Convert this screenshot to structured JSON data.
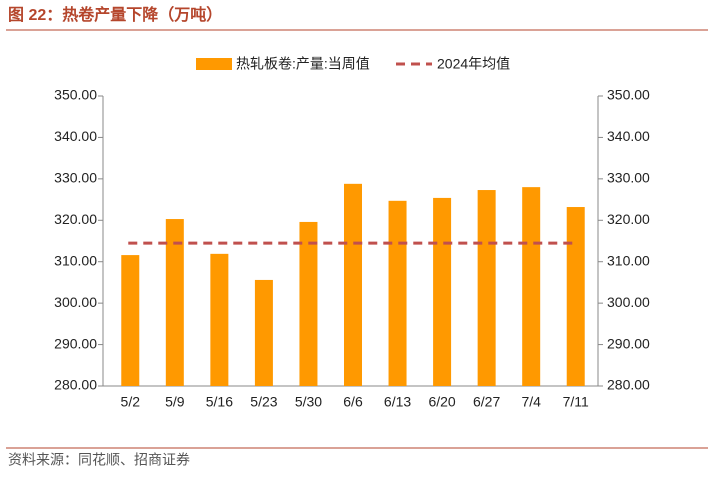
{
  "chart_data": {
    "type": "bar",
    "title": "图 22：热卷产量下降（万吨）",
    "source": "资料来源：同花顺、招商证券",
    "categories": [
      "5/2",
      "5/9",
      "5/16",
      "5/23",
      "5/30",
      "6/6",
      "6/13",
      "6/20",
      "6/27",
      "7/4",
      "7/11"
    ],
    "series": [
      {
        "name": "热轧板卷:产量:当周值",
        "color": "#ff9900",
        "values": [
          311.6,
          320.3,
          311.9,
          305.6,
          319.6,
          328.8,
          324.7,
          325.4,
          327.3,
          328.0,
          323.2
        ]
      },
      {
        "name": "2024年均值",
        "color": "#c0504d",
        "value": 314.5
      }
    ],
    "ylim": [
      280,
      350
    ],
    "yticks": [
      {
        "value": 280,
        "label": "280.00"
      },
      {
        "value": 290,
        "label": "290.00"
      },
      {
        "value": 300,
        "label": "300.00"
      },
      {
        "value": 310,
        "label": "310.00"
      },
      {
        "value": 320,
        "label": "320.00"
      },
      {
        "value": 330,
        "label": "330.00"
      },
      {
        "value": 340,
        "label": "340.00"
      },
      {
        "value": 350,
        "label": "350.00"
      }
    ],
    "y2lim": [
      280,
      350
    ],
    "y2ticks": [
      {
        "value": 280,
        "label": "280.00"
      },
      {
        "value": 290,
        "label": "290.00"
      },
      {
        "value": 300,
        "label": "300.00"
      },
      {
        "value": 310,
        "label": "310.00"
      },
      {
        "value": 320,
        "label": "320.00"
      },
      {
        "value": 330,
        "label": "330.00"
      },
      {
        "value": 340,
        "label": "340.00"
      },
      {
        "value": 350,
        "label": "350.00"
      }
    ]
  }
}
